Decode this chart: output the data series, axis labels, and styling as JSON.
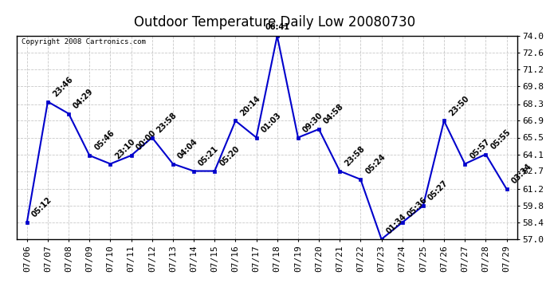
{
  "title": "Outdoor Temperature Daily Low 20080730",
  "copyright": "Copyright 2008 Cartronics.com",
  "x_labels": [
    "07/06",
    "07/07",
    "07/08",
    "07/09",
    "07/10",
    "07/11",
    "07/12",
    "07/13",
    "07/14",
    "07/15",
    "07/16",
    "07/17",
    "07/18",
    "07/19",
    "07/20",
    "07/21",
    "07/22",
    "07/23",
    "07/24",
    "07/25",
    "07/26",
    "07/27",
    "07/28",
    "07/29"
  ],
  "y_values": [
    58.4,
    68.5,
    67.5,
    64.0,
    63.3,
    64.0,
    65.5,
    63.3,
    62.7,
    62.7,
    66.9,
    65.5,
    74.0,
    65.5,
    66.2,
    62.7,
    62.0,
    57.0,
    58.4,
    59.8,
    66.9,
    63.3,
    64.1,
    61.2
  ],
  "point_labels": [
    "05:12",
    "23:46",
    "04:29",
    "05:46",
    "23:10",
    "00:00",
    "23:58",
    "04:04",
    "05:21",
    "05:20",
    "20:14",
    "01:03",
    "06:41",
    "09:30",
    "04:58",
    "23:58",
    "05:24",
    "01:34",
    "05:36",
    "05:27",
    "23:50",
    "05:57",
    "05:55",
    "03:34"
  ],
  "ylim_min": 57.0,
  "ylim_max": 74.0,
  "yticks": [
    57.0,
    58.4,
    59.8,
    61.2,
    62.7,
    64.1,
    65.5,
    66.9,
    68.3,
    69.8,
    71.2,
    72.6,
    74.0
  ],
  "line_color": "#0000cc",
  "marker_color": "#0000cc",
  "bg_color": "#ffffff",
  "grid_color": "#bbbbbb",
  "title_fontsize": 12,
  "label_fontsize": 7,
  "tick_fontsize": 8,
  "copyright_fontsize": 6.5
}
